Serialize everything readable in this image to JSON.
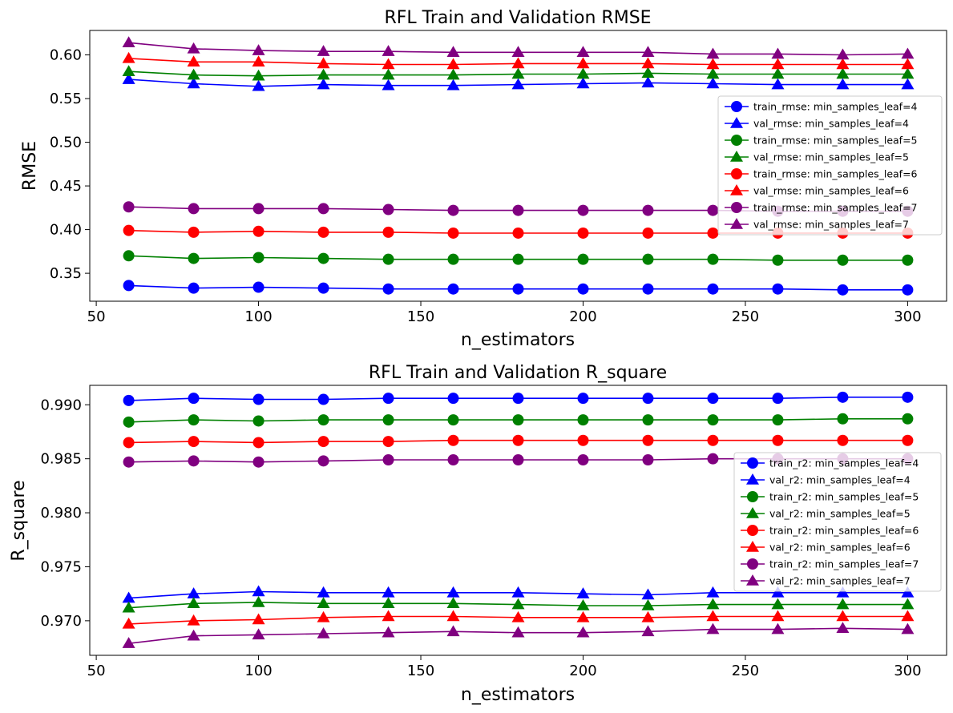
{
  "chart_data": [
    {
      "type": "line",
      "title": "RFL Train and Validation RMSE",
      "xlabel": "n_estimators",
      "ylabel": "RMSE",
      "xlim": [
        48,
        312
      ],
      "ylim": [
        0.318,
        0.628
      ],
      "xticks": [
        50,
        100,
        150,
        200,
        250,
        300
      ],
      "yticks": [
        0.35,
        0.4,
        0.45,
        0.5,
        0.55,
        0.6
      ],
      "ytick_labels": [
        "0.35",
        "0.40",
        "0.45",
        "0.50",
        "0.55",
        "0.60"
      ],
      "legend_position": "center-right",
      "x": [
        60,
        80,
        100,
        120,
        140,
        160,
        180,
        200,
        220,
        240,
        260,
        280,
        300
      ],
      "series": [
        {
          "name": "train_rmse: min_samples_leaf=4",
          "color": "#0000ff",
          "marker": "circle",
          "values": [
            0.336,
            0.333,
            0.334,
            0.333,
            0.332,
            0.332,
            0.332,
            0.332,
            0.332,
            0.332,
            0.332,
            0.331,
            0.331
          ]
        },
        {
          "name": "val_rmse: min_samples_leaf=4",
          "color": "#0000ff",
          "marker": "triangle",
          "values": [
            0.572,
            0.567,
            0.564,
            0.566,
            0.565,
            0.565,
            0.566,
            0.567,
            0.568,
            0.567,
            0.566,
            0.566,
            0.566
          ]
        },
        {
          "name": "train_rmse: min_samples_leaf=5",
          "color": "#008000",
          "marker": "circle",
          "values": [
            0.37,
            0.367,
            0.368,
            0.367,
            0.366,
            0.366,
            0.366,
            0.366,
            0.366,
            0.366,
            0.365,
            0.365,
            0.365
          ]
        },
        {
          "name": "val_rmse: min_samples_leaf=5",
          "color": "#008000",
          "marker": "triangle",
          "values": [
            0.581,
            0.577,
            0.576,
            0.577,
            0.577,
            0.577,
            0.578,
            0.578,
            0.579,
            0.578,
            0.578,
            0.578,
            0.578
          ]
        },
        {
          "name": "train_rmse: min_samples_leaf=6",
          "color": "#ff0000",
          "marker": "circle",
          "values": [
            0.399,
            0.397,
            0.398,
            0.397,
            0.397,
            0.396,
            0.396,
            0.396,
            0.396,
            0.396,
            0.396,
            0.396,
            0.396
          ]
        },
        {
          "name": "val_rmse: min_samples_leaf=6",
          "color": "#ff0000",
          "marker": "triangle",
          "values": [
            0.596,
            0.592,
            0.592,
            0.59,
            0.589,
            0.589,
            0.59,
            0.59,
            0.59,
            0.589,
            0.589,
            0.589,
            0.589
          ]
        },
        {
          "name": "train_rmse: min_samples_leaf=7",
          "color": "#800080",
          "marker": "circle",
          "values": [
            0.426,
            0.424,
            0.424,
            0.424,
            0.423,
            0.422,
            0.422,
            0.422,
            0.422,
            0.422,
            0.421,
            0.421,
            0.421
          ]
        },
        {
          "name": "val_rmse: min_samples_leaf=7",
          "color": "#800080",
          "marker": "triangle",
          "values": [
            0.614,
            0.607,
            0.605,
            0.604,
            0.604,
            0.603,
            0.603,
            0.603,
            0.603,
            0.601,
            0.601,
            0.6,
            0.601
          ]
        }
      ]
    },
    {
      "type": "line",
      "title": "RFL Train and Validation R_square",
      "xlabel": "n_estimators",
      "ylabel": "R_square",
      "xlim": [
        48,
        312
      ],
      "ylim": [
        0.9668,
        0.9918
      ],
      "xticks": [
        50,
        100,
        150,
        200,
        250,
        300
      ],
      "yticks": [
        0.97,
        0.975,
        0.98,
        0.985,
        0.99
      ],
      "ytick_labels": [
        "0.970",
        "0.975",
        "0.980",
        "0.985",
        "0.990"
      ],
      "legend_position": "center-right",
      "x": [
        60,
        80,
        100,
        120,
        140,
        160,
        180,
        200,
        220,
        240,
        260,
        280,
        300
      ],
      "series": [
        {
          "name": "train_r2: min_samples_leaf=4",
          "color": "#0000ff",
          "marker": "circle",
          "values": [
            0.9904,
            0.9906,
            0.9905,
            0.9905,
            0.9906,
            0.9906,
            0.9906,
            0.9906,
            0.9906,
            0.9906,
            0.9906,
            0.9907,
            0.9907
          ]
        },
        {
          "name": "val_r2: min_samples_leaf=4",
          "color": "#0000ff",
          "marker": "triangle",
          "values": [
            0.9721,
            0.9725,
            0.9727,
            0.9726,
            0.9726,
            0.9726,
            0.9726,
            0.9725,
            0.9724,
            0.9726,
            0.9726,
            0.9726,
            0.9726
          ]
        },
        {
          "name": "train_r2: min_samples_leaf=5",
          "color": "#008000",
          "marker": "circle",
          "values": [
            0.9884,
            0.9886,
            0.9885,
            0.9886,
            0.9886,
            0.9886,
            0.9886,
            0.9886,
            0.9886,
            0.9886,
            0.9886,
            0.9887,
            0.9887
          ]
        },
        {
          "name": "val_r2: min_samples_leaf=5",
          "color": "#008000",
          "marker": "triangle",
          "values": [
            0.9712,
            0.9716,
            0.9717,
            0.9716,
            0.9716,
            0.9716,
            0.9715,
            0.9714,
            0.9714,
            0.9715,
            0.9715,
            0.9715,
            0.9715
          ]
        },
        {
          "name": "train_r2: min_samples_leaf=6",
          "color": "#ff0000",
          "marker": "circle",
          "values": [
            0.9865,
            0.9866,
            0.9865,
            0.9866,
            0.9866,
            0.9867,
            0.9867,
            0.9867,
            0.9867,
            0.9867,
            0.9867,
            0.9867,
            0.9867
          ]
        },
        {
          "name": "val_r2: min_samples_leaf=6",
          "color": "#ff0000",
          "marker": "triangle",
          "values": [
            0.9697,
            0.97,
            0.9701,
            0.9703,
            0.9704,
            0.9704,
            0.9703,
            0.9703,
            0.9703,
            0.9704,
            0.9704,
            0.9704,
            0.9704
          ]
        },
        {
          "name": "train_r2: min_samples_leaf=7",
          "color": "#800080",
          "marker": "circle",
          "values": [
            0.9847,
            0.9848,
            0.9847,
            0.9848,
            0.9849,
            0.9849,
            0.9849,
            0.9849,
            0.9849,
            0.985,
            0.985,
            0.985,
            0.985
          ]
        },
        {
          "name": "val_r2: min_samples_leaf=7",
          "color": "#800080",
          "marker": "triangle",
          "values": [
            0.9679,
            0.9686,
            0.9687,
            0.9688,
            0.9689,
            0.969,
            0.9689,
            0.9689,
            0.969,
            0.9692,
            0.9692,
            0.9693,
            0.9692
          ]
        }
      ]
    }
  ]
}
